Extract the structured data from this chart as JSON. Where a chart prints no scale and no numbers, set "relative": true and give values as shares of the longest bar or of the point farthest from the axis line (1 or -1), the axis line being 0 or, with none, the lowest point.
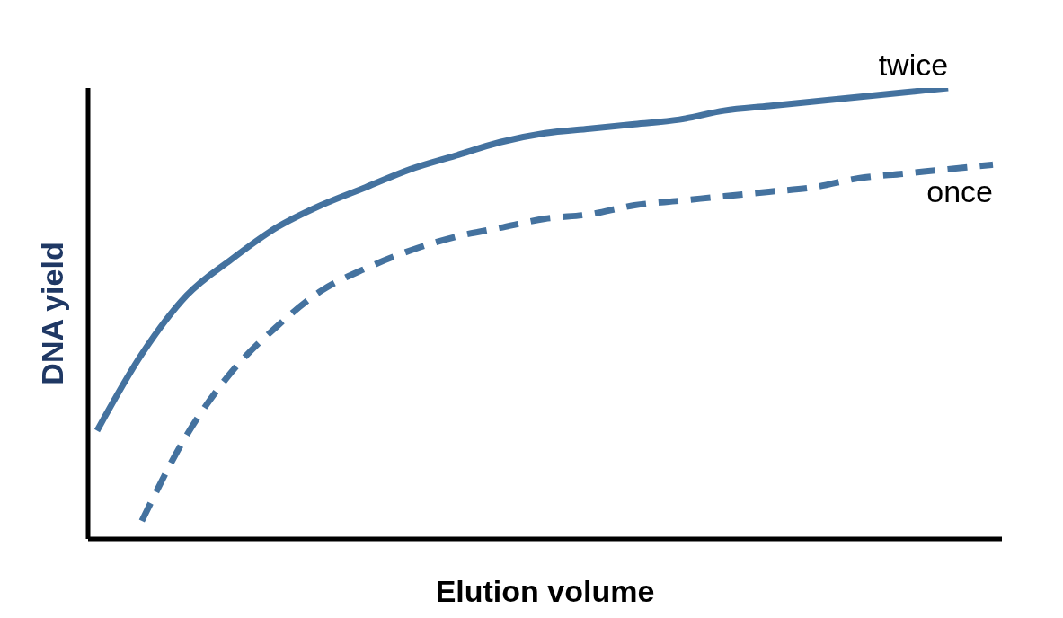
{
  "chart_data": {
    "type": "line",
    "relative": true,
    "xlabel": "Elution volume",
    "ylabel": "DNA yield",
    "categories": [
      null,
      null,
      null,
      null,
      null,
      null,
      null,
      null,
      null,
      null,
      null,
      null,
      null,
      null,
      null,
      null,
      null,
      null,
      null,
      null,
      null
    ],
    "series": [
      {
        "name": "twice",
        "color": "#44729f",
        "line_style": "solid",
        "values": [
          0.24,
          0.41,
          0.54,
          0.62,
          0.69,
          0.74,
          0.78,
          0.82,
          0.85,
          0.88,
          0.9,
          0.91,
          0.92,
          0.93,
          0.95,
          0.96,
          0.97,
          0.98,
          0.99,
          1,
          null
        ]
      },
      {
        "name": "once",
        "color": "#44729f",
        "line_style": "dashed",
        "values": [
          null,
          0.04,
          0.23,
          0.37,
          0.47,
          0.55,
          0.6,
          0.64,
          0.67,
          0.69,
          0.71,
          0.72,
          0.74,
          0.75,
          0.76,
          0.77,
          0.78,
          0.8,
          0.81,
          0.82,
          0.83
        ]
      }
    ],
    "marker": "none",
    "grid": false,
    "legend": false
  }
}
